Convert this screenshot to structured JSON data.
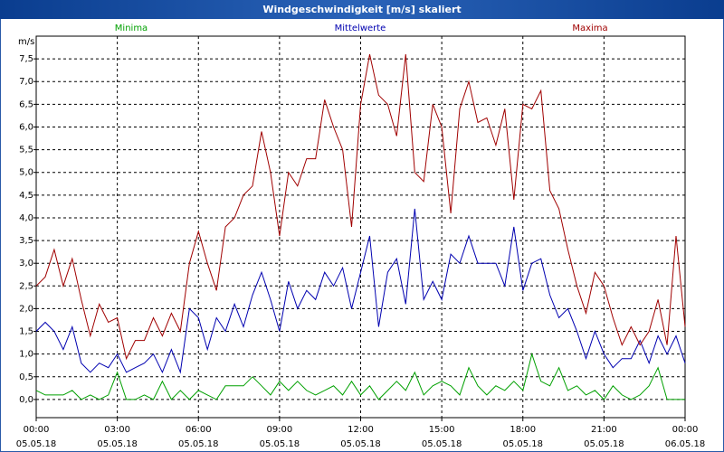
{
  "chart_data": {
    "type": "line",
    "title": "Windgeschwindigkeit [m/s] skaliert",
    "y_label": "m/s",
    "x": [
      0,
      20,
      40,
      60,
      80,
      100,
      120,
      140,
      160,
      180,
      200,
      220,
      240,
      260,
      280,
      300,
      320,
      340,
      360,
      380,
      400,
      420,
      440,
      460,
      480,
      500,
      520,
      540,
      560,
      580,
      600,
      620,
      640,
      660,
      680,
      700,
      720,
      740,
      760,
      780,
      800,
      820,
      840,
      860,
      880,
      900,
      920,
      940,
      960,
      980,
      1000,
      1020,
      1040,
      1060,
      1080,
      1100,
      1120,
      1140,
      1160,
      1180,
      1200,
      1220,
      1240,
      1260,
      1280,
      1300,
      1320,
      1340,
      1360,
      1380,
      1400,
      1420,
      1440
    ],
    "series": [
      {
        "name": "Minima",
        "color": "#00a000",
        "values": [
          0.2,
          0.1,
          0.1,
          0.1,
          0.2,
          0.0,
          0.1,
          0.0,
          0.1,
          0.6,
          0.0,
          0.0,
          0.1,
          0.0,
          0.4,
          0.0,
          0.2,
          0.0,
          0.2,
          0.1,
          0.0,
          0.3,
          0.3,
          0.3,
          0.5,
          0.3,
          0.1,
          0.4,
          0.2,
          0.4,
          0.2,
          0.1,
          0.2,
          0.3,
          0.1,
          0.4,
          0.1,
          0.3,
          0.0,
          0.2,
          0.4,
          0.2,
          0.6,
          0.1,
          0.3,
          0.4,
          0.3,
          0.1,
          0.7,
          0.3,
          0.1,
          0.3,
          0.2,
          0.4,
          0.2,
          1.0,
          0.4,
          0.3,
          0.7,
          0.2,
          0.3,
          0.1,
          0.2,
          0.0,
          0.3,
          0.1,
          0.0,
          0.1,
          0.3,
          0.7,
          0.0,
          0.0,
          0.0
        ]
      },
      {
        "name": "Mittelwerte",
        "color": "#0000b0",
        "values": [
          1.5,
          1.7,
          1.5,
          1.1,
          1.6,
          0.8,
          0.6,
          0.8,
          0.7,
          1.0,
          0.6,
          0.7,
          0.8,
          1.0,
          0.6,
          1.1,
          0.6,
          2.0,
          1.8,
          1.1,
          1.8,
          1.5,
          2.1,
          1.6,
          2.3,
          2.8,
          2.2,
          1.5,
          2.6,
          2.0,
          2.4,
          2.2,
          2.8,
          2.5,
          2.9,
          2.0,
          2.8,
          3.6,
          1.6,
          2.8,
          3.1,
          2.1,
          4.2,
          2.2,
          2.6,
          2.2,
          3.2,
          3.0,
          3.6,
          3.0,
          3.0,
          3.0,
          2.5,
          3.8,
          2.4,
          3.0,
          3.1,
          2.3,
          1.8,
          2.0,
          1.5,
          0.9,
          1.5,
          1.0,
          0.7,
          0.9,
          0.9,
          1.3,
          0.8,
          1.4,
          1.0,
          1.4,
          0.8
        ]
      },
      {
        "name": "Maxima",
        "color": "#a00000",
        "values": [
          2.5,
          2.7,
          3.3,
          2.5,
          3.1,
          2.2,
          1.4,
          2.1,
          1.7,
          1.8,
          0.9,
          1.3,
          1.3,
          1.8,
          1.4,
          1.9,
          1.5,
          3.0,
          3.7,
          3.0,
          2.4,
          3.8,
          4.0,
          4.5,
          4.7,
          5.9,
          5.0,
          3.6,
          5.0,
          4.7,
          5.3,
          5.3,
          6.6,
          6.0,
          5.5,
          3.8,
          6.5,
          7.6,
          6.7,
          6.5,
          5.8,
          7.6,
          5.0,
          4.8,
          6.5,
          6.0,
          4.1,
          6.4,
          7.0,
          6.1,
          6.2,
          5.6,
          6.4,
          4.4,
          6.5,
          6.4,
          6.8,
          4.6,
          4.2,
          3.3,
          2.5,
          1.9,
          2.8,
          2.5,
          1.8,
          1.2,
          1.6,
          1.2,
          1.5,
          2.2,
          1.2,
          3.6,
          1.6
        ]
      }
    ],
    "xlim": [
      0,
      1440
    ],
    "xticks": [
      {
        "value": 0,
        "label": [
          "00:00",
          "05.05.18"
        ]
      },
      {
        "value": 180,
        "label": [
          "03:00",
          "05.05.18"
        ]
      },
      {
        "value": 360,
        "label": [
          "06:00",
          "05.05.18"
        ]
      },
      {
        "value": 540,
        "label": [
          "09:00",
          "05.05.18"
        ]
      },
      {
        "value": 720,
        "label": [
          "12:00",
          "05.05.18"
        ]
      },
      {
        "value": 900,
        "label": [
          "15:00",
          "05.05.18"
        ]
      },
      {
        "value": 1080,
        "label": [
          "18:00",
          "05.05.18"
        ]
      },
      {
        "value": 1260,
        "label": [
          "21:00",
          "05.05.18"
        ]
      },
      {
        "value": 1440,
        "label": [
          "00:00",
          "06.05.18"
        ]
      }
    ],
    "ylim": [
      -0.4,
      8.0
    ],
    "yticks": [
      {
        "value": 0,
        "label": "0,0"
      },
      {
        "value": 0.5,
        "label": "0,5"
      },
      {
        "value": 1,
        "label": "1,0"
      },
      {
        "value": 1.5,
        "label": "1,5"
      },
      {
        "value": 2,
        "label": "2,0"
      },
      {
        "value": 2.5,
        "label": "2,5"
      },
      {
        "value": 3,
        "label": "3,0"
      },
      {
        "value": 3.5,
        "label": "3,5"
      },
      {
        "value": 4,
        "label": "4,0"
      },
      {
        "value": 4.5,
        "label": "4,5"
      },
      {
        "value": 5,
        "label": "5,0"
      },
      {
        "value": 5.5,
        "label": "5,5"
      },
      {
        "value": 6,
        "label": "6,0"
      },
      {
        "value": 6.5,
        "label": "6,5"
      },
      {
        "value": 7,
        "label": "7,0"
      },
      {
        "value": 7.5,
        "label": "7,5"
      }
    ],
    "grid": true
  }
}
